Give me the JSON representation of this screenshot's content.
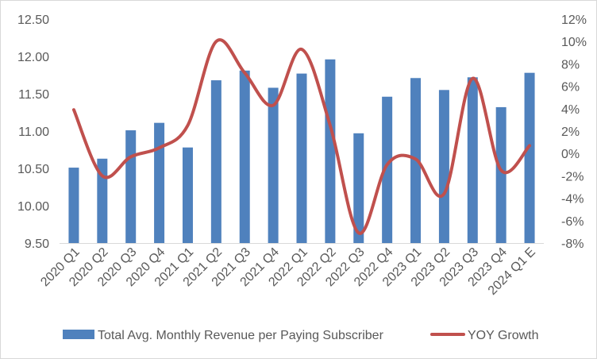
{
  "chart_data": {
    "type": "bar",
    "categories": [
      "2020 Q1",
      "2020 Q2",
      "2020 Q3",
      "2020 Q4",
      "2021 Q1",
      "2021 Q2",
      "2021 Q3",
      "2021 Q4",
      "2022 Q1",
      "2022 Q2",
      "2022 Q3",
      "2022 Q4",
      "2023 Q1",
      "2023 Q2",
      "2023 Q3",
      "2023 Q4",
      "2024 Q1 E"
    ],
    "series": [
      {
        "name": "Total Avg. Monthly Revenue per Paying Subscriber",
        "type": "bar",
        "axis": "left",
        "color": "#4f81bd",
        "values": [
          10.51,
          10.63,
          11.01,
          11.11,
          10.78,
          11.68,
          11.81,
          11.58,
          11.77,
          11.96,
          10.97,
          11.46,
          11.71,
          11.55,
          11.72,
          11.32,
          11.78
        ]
      },
      {
        "name": "YOY Growth",
        "type": "line",
        "axis": "right",
        "color": "#c0504d",
        "values": [
          3.9,
          -2.0,
          -0.3,
          0.5,
          2.5,
          10.0,
          7.2,
          4.3,
          9.3,
          2.5,
          -7.1,
          -1.0,
          -0.5,
          -3.6,
          6.7,
          -1.5,
          0.7
        ]
      }
    ],
    "y_left": {
      "ylim": [
        9.5,
        12.5
      ],
      "ticks": [
        "9.50",
        "10.00",
        "10.50",
        "11.00",
        "11.50",
        "12.00",
        "12.50"
      ]
    },
    "y_right": {
      "ylim": [
        -8,
        12
      ],
      "ticks": [
        "-8%",
        "-6%",
        "-4%",
        "-2%",
        "0%",
        "2%",
        "4%",
        "6%",
        "8%",
        "10%",
        "12%"
      ]
    },
    "grid": false,
    "legend_position": "bottom",
    "title": "",
    "xlabel": "",
    "ylabel": ""
  }
}
